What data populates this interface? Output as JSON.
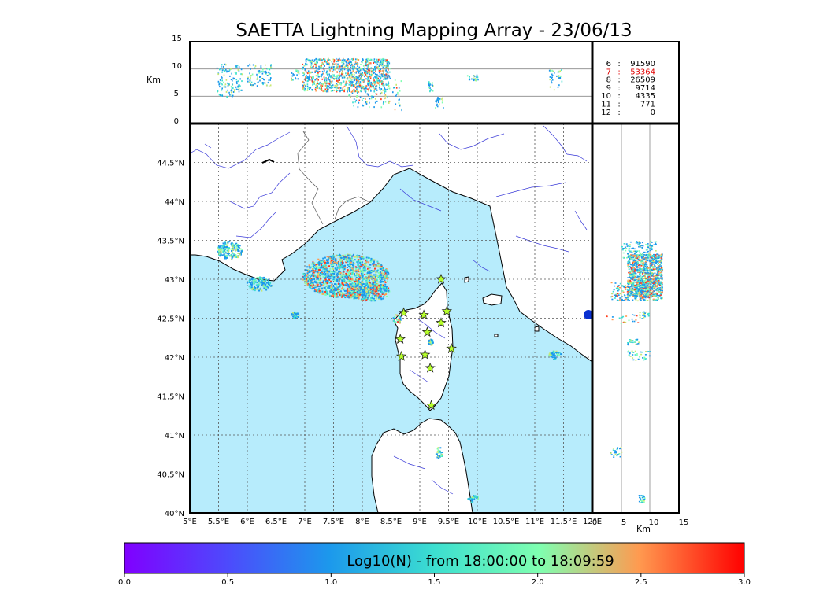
{
  "chart_data": {
    "type": "heatmap",
    "title": "SAETTA Lightning Mapping Array - 23/06/13",
    "altitude_panel": {
      "ylabel": "Km",
      "yticks": [
        "15",
        "10",
        "5",
        "0"
      ],
      "ylim": [
        0,
        15
      ]
    },
    "map_panel": {
      "xlim_lon": [
        5,
        12
      ],
      "ylim_lat": [
        40,
        45
      ],
      "lon_ticks": [
        "5°E",
        "5.5°E",
        "6°E",
        "6.5°E",
        "7°E",
        "7.5°E",
        "8°E",
        "8.5°E",
        "9°E",
        "9.5°E",
        "10°E",
        "10.5°E",
        "11°E",
        "11.5°E",
        "12°E"
      ],
      "lat_ticks": [
        "44.5°N",
        "44°N",
        "43.5°N",
        "43°N",
        "42.5°N",
        "42°N",
        "41.5°N",
        "41°N",
        "40.5°N",
        "40°N"
      ],
      "sea_color": "#b7ecfc",
      "land_color": "#ffffff",
      "river_color": "#3a3ad8",
      "border_color": "#555555"
    },
    "side_panel": {
      "xlabel": "Km",
      "xticks": [
        "0",
        "5",
        "10",
        "15"
      ],
      "xlim": [
        0,
        15
      ]
    },
    "station_counts": [
      {
        "stations": "6",
        "sep": ":",
        "count": "91590",
        "highlight": false
      },
      {
        "stations": "7",
        "sep": ":",
        "count": "53364",
        "highlight": true
      },
      {
        "stations": "8",
        "sep": ":",
        "count": "26509",
        "highlight": false
      },
      {
        "stations": "9",
        "sep": ":",
        "count": "9714",
        "highlight": false
      },
      {
        "stations": "10",
        "sep": ":",
        "count": "4335",
        "highlight": false
      },
      {
        "stations": "11",
        "sep": ":",
        "count": "771",
        "highlight": false
      },
      {
        "stations": "12",
        "sep": ":",
        "count": "0",
        "highlight": false
      }
    ],
    "highlight_color": "#e00000",
    "stations_lonlat": [
      [
        9.37,
        43.0
      ],
      [
        8.72,
        42.57
      ],
      [
        9.07,
        42.54
      ],
      [
        9.47,
        42.59
      ],
      [
        9.13,
        42.32
      ],
      [
        9.37,
        42.44
      ],
      [
        8.66,
        42.23
      ],
      [
        9.55,
        42.11
      ],
      [
        9.09,
        42.03
      ],
      [
        8.68,
        42.01
      ],
      [
        9.18,
        41.86
      ],
      [
        9.2,
        41.38
      ]
    ],
    "station_color": "#b6ff2a",
    "storms": [
      {
        "lon": 5.68,
        "lat": 43.38,
        "rx": 0.22,
        "ry": 0.12,
        "alt": [
          5,
          11
        ]
      },
      {
        "lon": 6.2,
        "lat": 42.95,
        "rx": 0.22,
        "ry": 0.09,
        "alt": [
          7,
          11
        ]
      },
      {
        "lon": 7.7,
        "lat": 43.05,
        "rx": 0.75,
        "ry": 0.28,
        "alt": [
          6,
          12
        ]
      },
      {
        "lon": 8.1,
        "lat": 42.85,
        "rx": 0.38,
        "ry": 0.12,
        "alt": [
          3,
          12
        ]
      },
      {
        "lon": 6.82,
        "lat": 42.55,
        "rx": 0.07,
        "ry": 0.04,
        "alt": [
          8,
          10
        ]
      },
      {
        "lon": 8.6,
        "lat": 42.5,
        "rx": 0.08,
        "ry": 0.06,
        "alt": [
          2,
          9
        ]
      },
      {
        "lon": 9.18,
        "lat": 42.2,
        "rx": 0.04,
        "ry": 0.04,
        "alt": [
          6,
          8
        ]
      },
      {
        "lon": 11.35,
        "lat": 42.03,
        "rx": 0.12,
        "ry": 0.06,
        "alt": [
          6,
          10
        ]
      },
      {
        "lon": 9.33,
        "lat": 40.78,
        "rx": 0.07,
        "ry": 0.07,
        "alt": [
          3,
          5
        ]
      },
      {
        "lon": 9.92,
        "lat": 40.19,
        "rx": 0.1,
        "ry": 0.05,
        "alt": [
          8,
          9
        ]
      }
    ],
    "colorbar": {
      "label": "Log10(N) - from 18:00:00 to 18:09:59",
      "ticks": [
        "0.0",
        "0.5",
        "1.0",
        "1.5",
        "2.0",
        "2.5",
        "3.0"
      ],
      "range": [
        0,
        3
      ],
      "colormap": "rainbow"
    }
  }
}
